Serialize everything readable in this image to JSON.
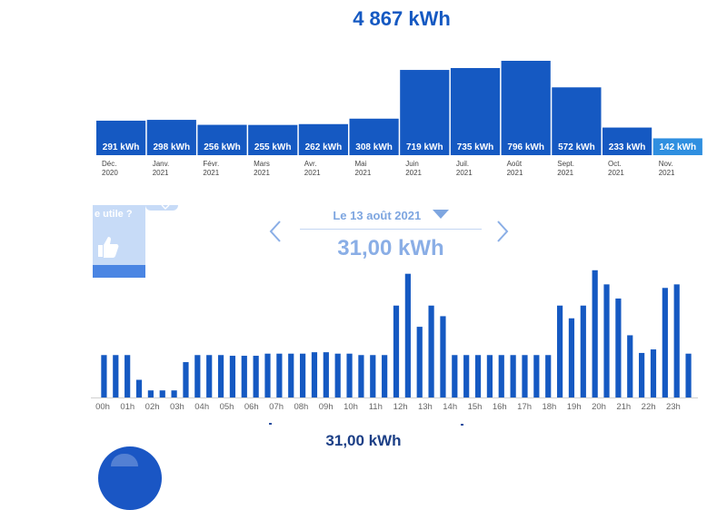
{
  "colors": {
    "accent": "#1559c2",
    "bar": "#1559c2",
    "bar_current": "#2f8fe0",
    "muted": "#8aaee6",
    "card": "#c7dbf7"
  },
  "summary": {
    "total_label": "4 867 kWh",
    "selected_date": "Le 13 août 2021",
    "selected_total": "31,00 kWh",
    "bottom_total": "31,00 kWh"
  },
  "feedback": {
    "question": "e utile ?",
    "icon": "thumbs-up-icon"
  },
  "icons": {
    "prev": "chevron-left-icon",
    "next": "chevron-right-icon",
    "date_dropdown": "caret-down-icon"
  },
  "chart_data": [
    {
      "type": "bar",
      "categories": [
        "Déc. 2020",
        "Janv. 2021",
        "Févr. 2021",
        "Mars 2021",
        "Avr. 2021",
        "Mai 2021",
        "Juin 2021",
        "Juil. 2021",
        "Août 2021",
        "Sept. 2021",
        "Oct. 2021",
        "Nov. 2021"
      ],
      "category_lines": [
        [
          "Déc.",
          "2020"
        ],
        [
          "Janv.",
          "2021"
        ],
        [
          "Févr.",
          "2021"
        ],
        [
          "Mars",
          "2021"
        ],
        [
          "Avr.",
          "2021"
        ],
        [
          "Mai",
          "2021"
        ],
        [
          "Juin",
          "2021"
        ],
        [
          "Juil.",
          "2021"
        ],
        [
          "Août",
          "2021"
        ],
        [
          "Sept.",
          "2021"
        ],
        [
          "Oct.",
          "2021"
        ],
        [
          "Nov.",
          "2021"
        ]
      ],
      "values": [
        291,
        298,
        256,
        255,
        262,
        308,
        719,
        735,
        796,
        572,
        233,
        142
      ],
      "data_labels": [
        "291 kWh",
        "298 kWh",
        "256 kWh",
        "255 kWh",
        "262 kWh",
        "308 kWh",
        "719 kWh",
        "735 kWh",
        "796 kWh",
        "572 kWh",
        "233 kWh",
        "142 kWh"
      ],
      "highlight_index": 11,
      "ylim": [
        0,
        796
      ],
      "grid": false
    },
    {
      "type": "bar",
      "x_ticks": [
        "00h",
        "01h",
        "02h",
        "03h",
        "04h",
        "05h",
        "06h",
        "07h",
        "08h",
        "09h",
        "10h",
        "11h",
        "12h",
        "13h",
        "14h",
        "15h",
        "16h",
        "17h",
        "18h",
        "19h",
        "20h",
        "21h",
        "22h",
        "23h"
      ],
      "values": [
        0.6,
        0.6,
        0.6,
        0.25,
        0.1,
        0.1,
        0.1,
        0.5,
        0.6,
        0.6,
        0.6,
        0.59,
        0.59,
        0.59,
        0.62,
        0.62,
        0.62,
        0.62,
        0.64,
        0.64,
        0.62,
        0.62,
        0.6,
        0.6,
        0.6,
        1.3,
        1.75,
        1.0,
        1.3,
        1.15,
        0.6,
        0.6,
        0.6,
        0.6,
        0.6,
        0.6,
        0.6,
        0.6,
        0.6,
        1.3,
        1.12,
        1.3,
        1.8,
        1.6,
        1.4,
        0.88,
        0.63,
        0.68,
        1.55,
        1.6,
        0.62
      ],
      "ylim": [
        0,
        1.9
      ],
      "grid": false
    }
  ]
}
